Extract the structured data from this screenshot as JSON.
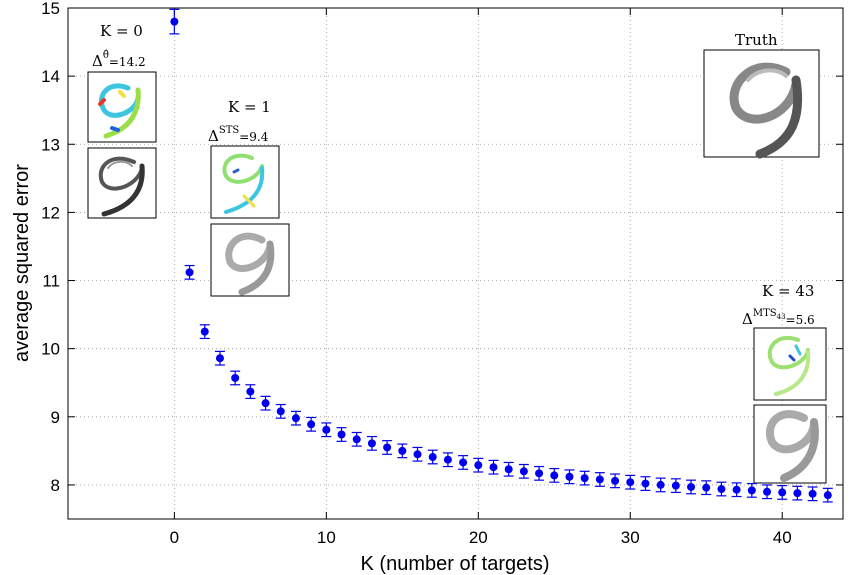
{
  "chart_data": {
    "type": "scatter",
    "xlabel": "K (number of targets)",
    "ylabel": "average squared error",
    "xlim": [
      -7,
      44
    ],
    "ylim": [
      7.5,
      15
    ],
    "xticks": [
      "0",
      "10",
      "20",
      "30",
      "40"
    ],
    "yticks": [
      "8",
      "9",
      "10",
      "11",
      "12",
      "13",
      "14",
      "15"
    ],
    "grid": true,
    "marker_color": "#0000ee",
    "series": [
      {
        "x": [
          0,
          1,
          2,
          3,
          4,
          5,
          6,
          7,
          8,
          9,
          10,
          11,
          12,
          13,
          14,
          15,
          16,
          17,
          18,
          19,
          20,
          21,
          22,
          23,
          24,
          25,
          26,
          27,
          28,
          29,
          30,
          31,
          32,
          33,
          34,
          35,
          36,
          37,
          38,
          39,
          40,
          41,
          42,
          43
        ],
        "y": [
          14.8,
          11.12,
          10.25,
          9.86,
          9.57,
          9.37,
          9.2,
          9.08,
          8.98,
          8.89,
          8.81,
          8.74,
          8.67,
          8.61,
          8.55,
          8.5,
          8.45,
          8.41,
          8.37,
          8.33,
          8.29,
          8.26,
          8.23,
          8.2,
          8.17,
          8.14,
          8.12,
          8.1,
          8.08,
          8.06,
          8.04,
          8.02,
          8.0,
          7.99,
          7.97,
          7.96,
          7.94,
          7.93,
          7.92,
          7.9,
          7.89,
          7.88,
          7.87,
          7.85
        ],
        "err": [
          0.18,
          0.1,
          0.1,
          0.1,
          0.1,
          0.1,
          0.1,
          0.1,
          0.1,
          0.1,
          0.1,
          0.1,
          0.1,
          0.1,
          0.1,
          0.1,
          0.1,
          0.1,
          0.1,
          0.1,
          0.1,
          0.1,
          0.1,
          0.1,
          0.1,
          0.1,
          0.1,
          0.1,
          0.1,
          0.1,
          0.1,
          0.1,
          0.1,
          0.1,
          0.1,
          0.1,
          0.1,
          0.1,
          0.1,
          0.1,
          0.1,
          0.1,
          0.1,
          0.1
        ]
      }
    ],
    "annotations": {
      "k0": {
        "title": "K = 0",
        "delta_base": "Δ",
        "delta_sup": "θ̂",
        "delta_value": "=14.2"
      },
      "k1": {
        "title": "K = 1",
        "delta_base": "Δ",
        "delta_sup": "STS",
        "delta_value": "=9.4"
      },
      "k43": {
        "title": "K = 43",
        "delta_base": "Δ",
        "delta_sup": "MTS",
        "delta_subsup": "43",
        "delta_value": "=5.6"
      },
      "truth": {
        "title": "Truth"
      }
    }
  }
}
